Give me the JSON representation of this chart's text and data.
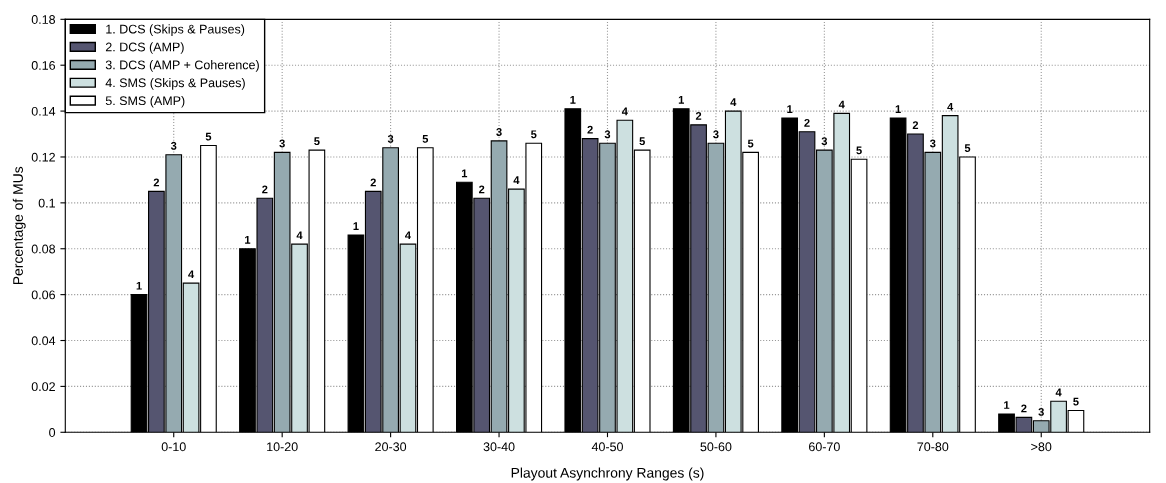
{
  "chart_data": {
    "type": "bar",
    "xlabel": "Playout Asynchrony Ranges (s)",
    "ylabel": "Percentage of MUs",
    "categories": [
      "0-10",
      "10-20",
      "20-30",
      "30-40",
      "40-50",
      "50-60",
      "60-70",
      "70-80",
      ">80"
    ],
    "series": [
      {
        "name": "1. DCS (Skips & Pauses)",
        "color": "#000000",
        "values": [
          0.06,
          0.08,
          0.086,
          0.109,
          0.141,
          0.141,
          0.137,
          0.137,
          0.008
        ]
      },
      {
        "name": "2. DCS (AMP)",
        "color": "#555570",
        "values": [
          0.105,
          0.102,
          0.105,
          0.102,
          0.128,
          0.134,
          0.131,
          0.13,
          0.0065
        ]
      },
      {
        "name": "3. DCS (AMP + Coherence)",
        "color": "#95aab0",
        "values": [
          0.121,
          0.122,
          0.124,
          0.127,
          0.126,
          0.126,
          0.123,
          0.122,
          0.005
        ]
      },
      {
        "name": "4. SMS (Skips & Pauses)",
        "color": "#cde0e0",
        "values": [
          0.065,
          0.082,
          0.082,
          0.106,
          0.136,
          0.14,
          0.139,
          0.138,
          0.0135
        ]
      },
      {
        "name": "5. SMS (AMP)",
        "color": "#ffffff",
        "values": [
          0.125,
          0.123,
          0.124,
          0.126,
          0.123,
          0.122,
          0.119,
          0.12,
          0.0095
        ]
      }
    ],
    "annotations": [
      "1",
      "2",
      "3",
      "4",
      "5",
      "1",
      "2",
      "3",
      "4",
      "5",
      "1",
      "2",
      "3",
      "4",
      "5",
      "1",
      "2",
      "3",
      "4",
      "5",
      "1",
      "2",
      "3",
      "4",
      "5",
      "1",
      "2",
      "3",
      "4",
      "5",
      "1",
      "2",
      "3",
      "4",
      "5",
      "1",
      "2",
      "3",
      "4",
      "5",
      "1",
      "2",
      "3",
      "4",
      "5"
    ],
    "ylim": [
      0,
      0.18
    ],
    "yticks": [
      0,
      0.02,
      0.04,
      0.06,
      0.08,
      0.1,
      0.12,
      0.14,
      0.16,
      0.18
    ],
    "grid": true,
    "legend": "top left"
  }
}
